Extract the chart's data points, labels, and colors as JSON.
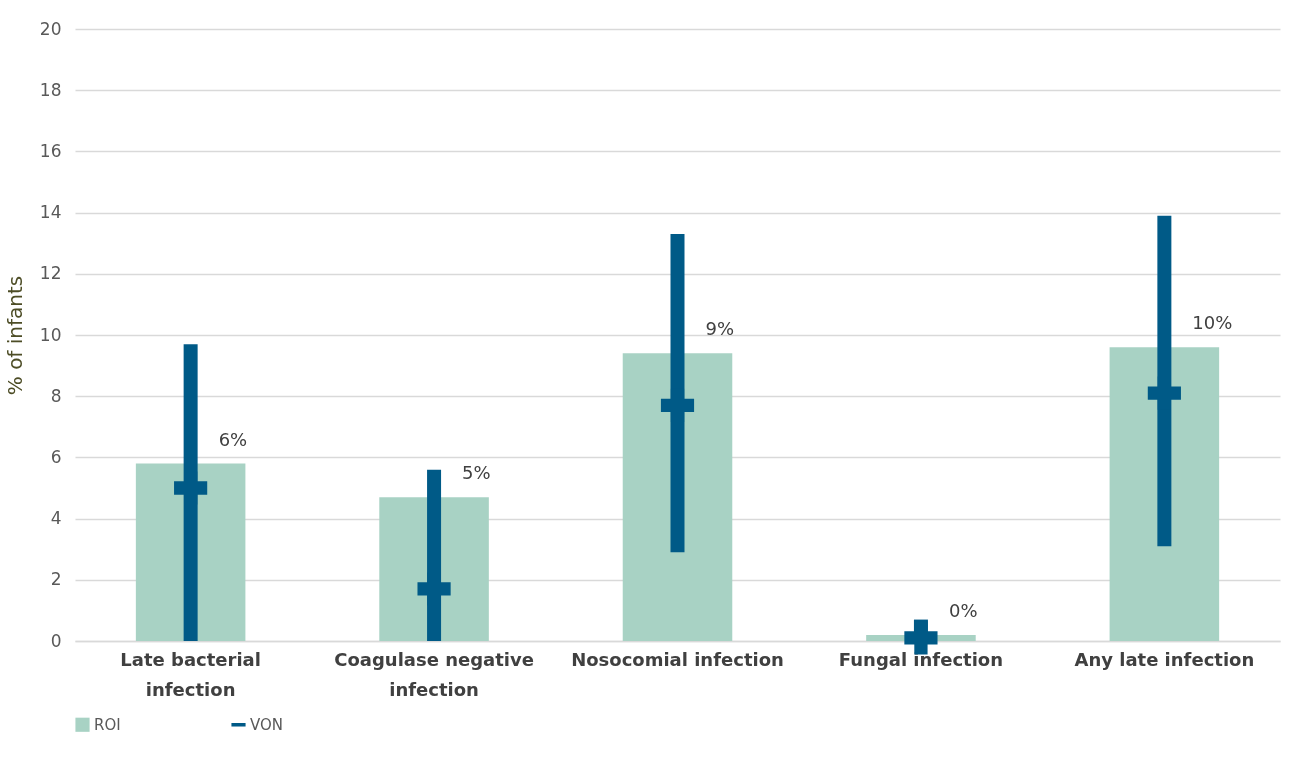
{
  "chart_data": {
    "type": "bar",
    "ylabel": "% of infants",
    "categories": [
      "Late bacterial infection",
      "Coagulase negative infection",
      "Nosocomial infection",
      "Fungal infection",
      "Any late infection"
    ],
    "series": [
      {
        "name": "ROI",
        "color": "#a8d2c4",
        "values": [
          5.8,
          4.7,
          9.4,
          0.2,
          9.6
        ],
        "value_labels": [
          "6%",
          "5%",
          "9%",
          "0%",
          "10%"
        ]
      },
      {
        "name": "VON",
        "type": "scatter",
        "color": "#005a87",
        "values": [
          5.0,
          1.7,
          7.7,
          0.1,
          8.1
        ],
        "errors": [
          [
            0,
            9.7
          ],
          [
            0,
            5.6
          ],
          [
            2.9,
            13.3
          ],
          [
            0.1,
            0.7
          ],
          [
            3.1,
            13.9
          ]
        ]
      }
    ],
    "ylim": [
      0,
      20
    ],
    "yticks": [
      0,
      2,
      4,
      6,
      8,
      10,
      12,
      14,
      16,
      18,
      20
    ],
    "grid": "y",
    "legend": "bottom",
    "marker": "cross"
  }
}
